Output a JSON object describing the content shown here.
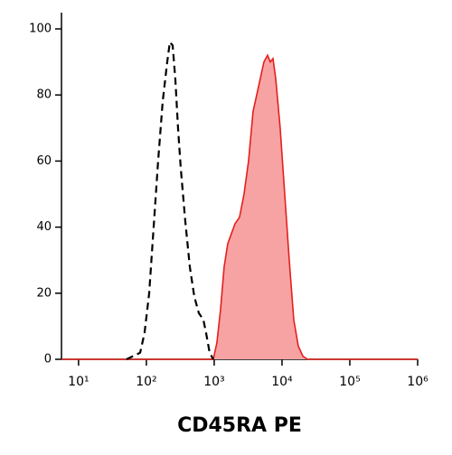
{
  "chart_data": {
    "type": "histogram-overlay",
    "xlabel": "CD45RA PE",
    "xscale": "log",
    "xlim": [
      5.6,
      1000000
    ],
    "ylim": [
      0,
      100
    ],
    "xticks": [
      {
        "value": 10,
        "label": "10¹"
      },
      {
        "value": 100,
        "label": "10²"
      },
      {
        "value": 1000,
        "label": "10³"
      },
      {
        "value": 10000,
        "label": "10⁴"
      },
      {
        "value": 100000,
        "label": "10⁵"
      },
      {
        "value": 1000000,
        "label": "10⁶"
      }
    ],
    "yticks": [
      0,
      20,
      40,
      60,
      80,
      100
    ],
    "series": [
      {
        "color": "#e3201c",
        "fill": "#f8a3a3",
        "x": [
          5.6,
          970,
          1096,
          1240,
          1402,
          1585,
          1792,
          2026,
          2362,
          2754,
          3211,
          3743,
          4236,
          4786,
          5411,
          6120,
          6714,
          7362,
          8072,
          9397,
          10965,
          12790,
          14900,
          17378,
          20260,
          23600,
          1000000
        ],
        "values": [
          0,
          0,
          5,
          15,
          28,
          35,
          38,
          41,
          43,
          50,
          60,
          75,
          80,
          85,
          90,
          92,
          90,
          91,
          85,
          70,
          50,
          30,
          12,
          4,
          1,
          0,
          0
        ]
      },
      {
        "color": "#000000",
        "dashed": true,
        "x": [
          51,
          81,
          94,
          110,
          128,
          149,
          174,
          203,
          222,
          244,
          267,
          293,
          321,
          374,
          437,
          509,
          593,
          692,
          759,
          857,
          970
        ],
        "values": [
          0,
          2,
          8,
          20,
          40,
          60,
          78,
          90,
          96,
          95,
          85,
          70,
          58,
          42,
          28,
          19,
          14,
          12,
          8,
          2,
          0
        ]
      }
    ]
  }
}
